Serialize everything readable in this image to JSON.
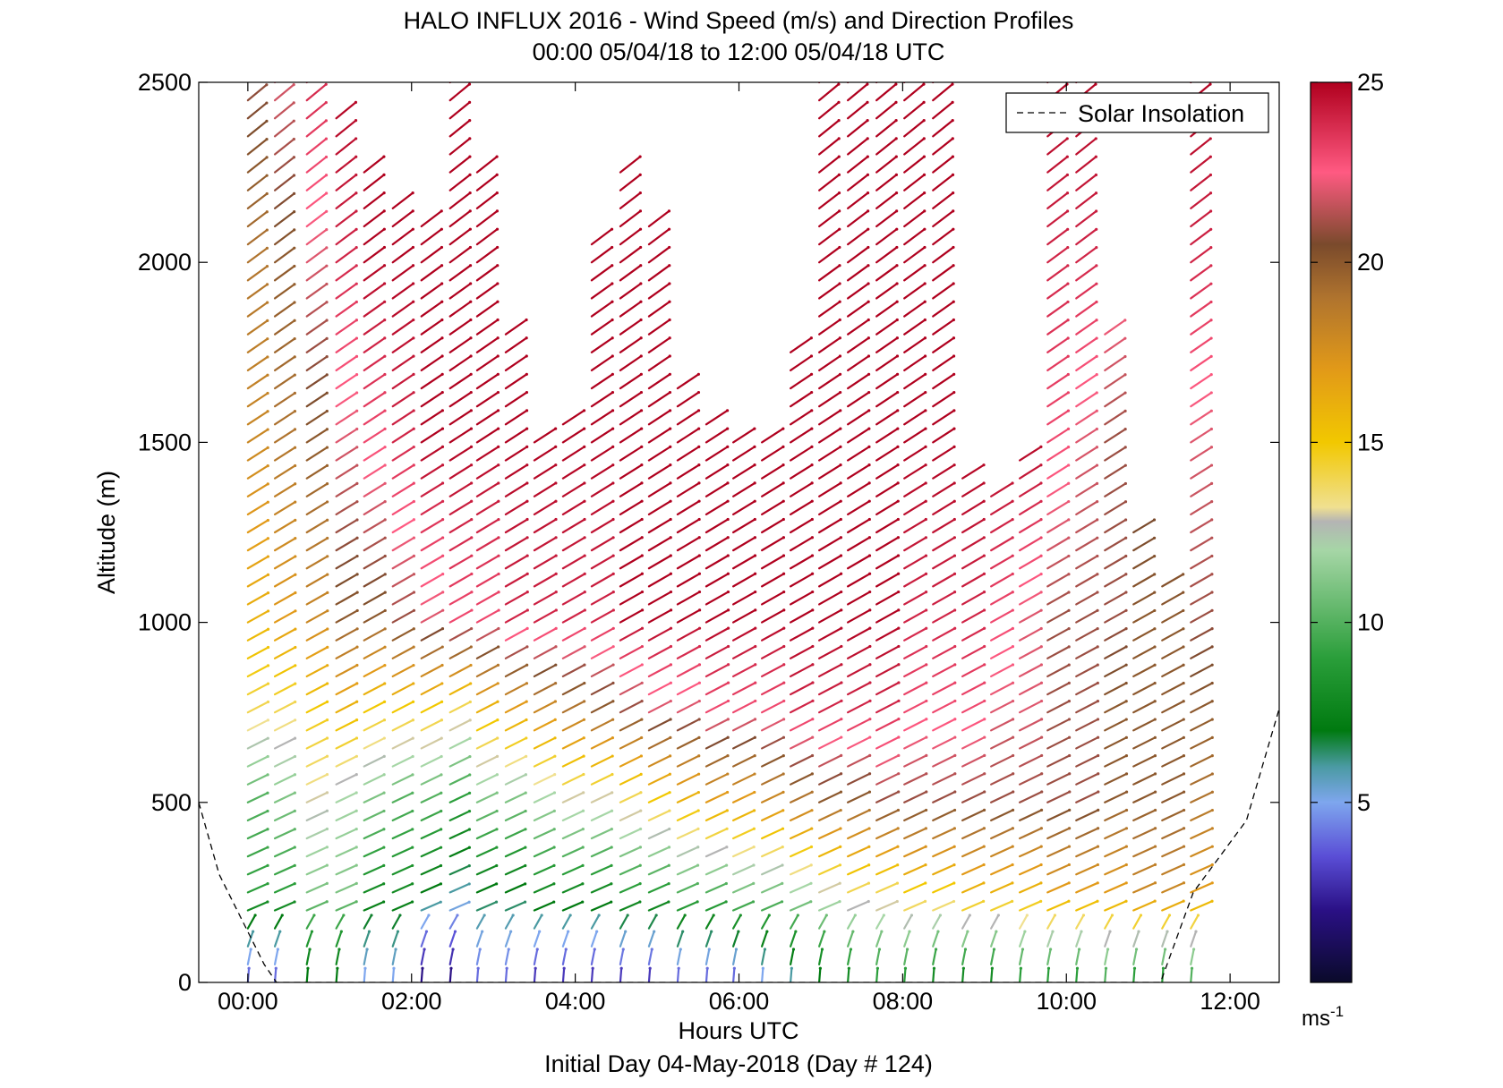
{
  "chart_data": {
    "type": "wind-barb-profile",
    "title": "HALO INFLUX 2016 - Wind Speed (m/s) and Direction Profiles",
    "subtitle": "00:00 05/04/18 to 12:00 05/04/18  UTC",
    "xlabel": "Hours UTC",
    "footer": "Initial Day 04-May-2018 (Day # 124)",
    "ylabel": "Altitude (m)",
    "xlim": [
      -0.6,
      12.6
    ],
    "ylim": [
      0,
      2500
    ],
    "x_ticks": [
      {
        "value": 0,
        "label": "00:00"
      },
      {
        "value": 2,
        "label": "02:00"
      },
      {
        "value": 4,
        "label": "04:00"
      },
      {
        "value": 6,
        "label": "06:00"
      },
      {
        "value": 8,
        "label": "08:00"
      },
      {
        "value": 10,
        "label": "10:00"
      },
      {
        "value": 12,
        "label": "12:00"
      }
    ],
    "y_ticks": [
      {
        "value": 0,
        "label": "0"
      },
      {
        "value": 500,
        "label": "500"
      },
      {
        "value": 1000,
        "label": "1000"
      },
      {
        "value": 1500,
        "label": "1500"
      },
      {
        "value": 2000,
        "label": "2000"
      },
      {
        "value": 2500,
        "label": "2500"
      }
    ],
    "legend": {
      "position": "top-right",
      "entries": [
        "Solar Insolation"
      ]
    },
    "colorbar": {
      "range": [
        0,
        25
      ],
      "unit": "ms",
      "unit_exp": "-1",
      "ticks": [
        {
          "value": 5,
          "label": "5"
        },
        {
          "value": 10,
          "label": "10"
        },
        {
          "value": 15,
          "label": "15"
        },
        {
          "value": 20,
          "label": "20"
        },
        {
          "value": 25,
          "label": "25"
        }
      ],
      "stops": [
        {
          "v": 0,
          "c": "#0a0a2a"
        },
        {
          "v": 2,
          "c": "#2a1085"
        },
        {
          "v": 3.5,
          "c": "#5a4ed6"
        },
        {
          "v": 5,
          "c": "#7ea6ee"
        },
        {
          "v": 6,
          "c": "#4a9aa2"
        },
        {
          "v": 7,
          "c": "#007a10"
        },
        {
          "v": 9,
          "c": "#2a9e3a"
        },
        {
          "v": 12,
          "c": "#a6d6a6"
        },
        {
          "v": 12.8,
          "c": "#b4b4b4"
        },
        {
          "v": 13.2,
          "c": "#f0e090"
        },
        {
          "v": 15,
          "c": "#f2c800"
        },
        {
          "v": 17,
          "c": "#e29a18"
        },
        {
          "v": 19,
          "c": "#b0742e"
        },
        {
          "v": 20.5,
          "c": "#7a4a2c"
        },
        {
          "v": 22.5,
          "c": "#ff5a82"
        },
        {
          "v": 25,
          "c": "#b0001e"
        }
      ]
    },
    "profile_times": [
      0.0,
      0.33,
      0.72,
      1.08,
      1.42,
      1.77,
      2.12,
      2.47,
      2.8,
      3.15,
      3.5,
      3.85,
      4.2,
      4.55,
      4.9,
      5.25,
      5.6,
      5.93,
      6.28,
      6.63,
      6.98,
      7.33,
      7.68,
      8.02,
      8.37,
      8.73,
      9.08,
      9.43,
      9.77,
      10.12,
      10.47,
      10.82,
      11.17,
      11.52
    ],
    "profile_top_m": [
      2480,
      2500,
      2500,
      2400,
      2280,
      2180,
      2120,
      2500,
      2250,
      1830,
      1500,
      1550,
      2050,
      2280,
      2100,
      1650,
      1580,
      1500,
      1530,
      1760,
      2500,
      2500,
      2500,
      2500,
      2500,
      1400,
      1350,
      1450,
      2500,
      2500,
      1830,
      1280,
      1130,
      2500
    ],
    "profile_speeds": [
      {
        "alt": 0,
        "speeds": [
          4,
          4,
          7,
          7,
          5,
          5,
          2,
          2,
          4,
          4,
          3,
          3,
          3,
          3,
          3,
          4,
          4,
          4,
          5,
          6,
          7,
          8,
          9,
          9,
          8,
          8,
          8,
          9,
          9,
          9,
          10,
          9,
          9,
          10
        ]
      },
      {
        "alt": 250,
        "speeds": [
          9,
          9,
          11,
          11,
          8,
          8,
          7,
          6,
          7,
          7,
          8,
          8,
          8,
          9,
          9,
          10,
          10,
          11,
          11,
          12,
          13,
          14,
          14,
          15,
          15,
          16,
          16,
          16,
          17,
          17,
          17,
          18,
          18,
          17
        ]
      },
      {
        "alt": 500,
        "speeds": [
          10,
          11,
          13,
          12,
          11,
          10,
          10,
          9,
          11,
          11,
          12,
          13,
          13,
          14,
          15,
          16,
          17,
          17,
          18,
          19,
          20,
          20,
          21,
          21,
          21,
          21,
          21,
          21,
          21,
          21,
          20,
          20,
          20,
          19
        ]
      },
      {
        "alt": 750,
        "speeds": [
          14,
          14,
          15,
          16,
          15,
          15,
          15,
          14,
          16,
          17,
          18,
          19,
          20,
          21,
          22,
          22,
          23,
          23,
          23,
          24,
          24,
          24,
          24,
          23,
          23,
          23,
          22,
          22,
          21,
          21,
          20,
          20,
          20,
          20
        ]
      },
      {
        "alt": 1000,
        "speeds": [
          16,
          17,
          18,
          20,
          20,
          21,
          22,
          23,
          23,
          24,
          24,
          24,
          24,
          25,
          25,
          25,
          25,
          25,
          25,
          25,
          25,
          25,
          25,
          24,
          24,
          24,
          23,
          22,
          21,
          21,
          21,
          20,
          20,
          21
        ]
      },
      {
        "alt": 1500,
        "speeds": [
          18,
          19,
          20,
          22,
          23,
          24,
          25,
          25,
          25,
          25,
          25,
          25,
          25,
          25,
          25,
          25,
          25,
          25,
          25,
          25,
          25,
          25,
          25,
          25,
          25,
          25,
          25,
          25,
          23,
          22,
          21,
          21,
          21,
          22
        ]
      },
      {
        "alt": 2000,
        "speeds": [
          19,
          20,
          22,
          24,
          25,
          25,
          25,
          25,
          25,
          25,
          25,
          25,
          25,
          25,
          25,
          25,
          25,
          25,
          25,
          25,
          25,
          25,
          25,
          25,
          25,
          25,
          25,
          25,
          24,
          24,
          23,
          23,
          23,
          24
        ]
      },
      {
        "alt": 2500,
        "speeds": [
          21,
          22,
          24,
          25,
          25,
          25,
          25,
          25,
          25,
          25,
          25,
          25,
          25,
          25,
          25,
          25,
          25,
          25,
          25,
          25,
          25,
          25,
          25,
          25,
          25,
          25,
          25,
          25,
          25,
          25,
          25,
          25,
          25,
          25
        ]
      }
    ],
    "solar_insolation": {
      "name": "Solar Insolation",
      "points": [
        [
          -0.6,
          500
        ],
        [
          -0.35,
          300
        ],
        [
          0.2,
          50
        ],
        [
          0.35,
          0
        ],
        [
          11.15,
          0
        ],
        [
          11.55,
          250
        ],
        [
          12.2,
          450
        ],
        [
          12.6,
          760
        ]
      ]
    }
  },
  "colors": {
    "axis": "#000000",
    "solar_line": "#000000",
    "background": "#ffffff"
  }
}
